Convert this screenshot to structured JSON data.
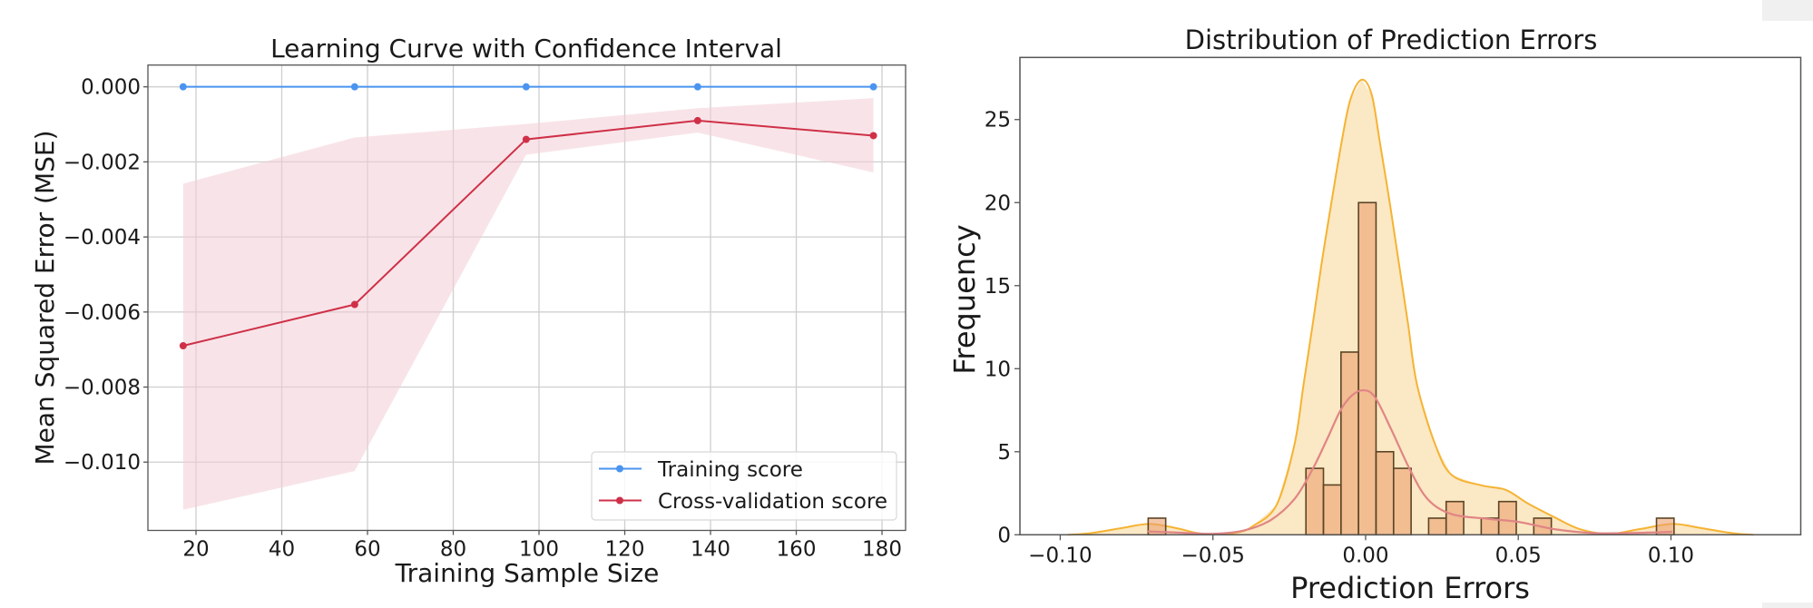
{
  "chart_data": [
    {
      "type": "line",
      "title": "Learning Curve with Confidence Interval",
      "xlabel": "Training Sample Size",
      "ylabel": "Mean Squared Error (MSE)",
      "xlim": [
        8.78,
        185.5
      ],
      "ylim": [
        -0.01182,
        0.00058
      ],
      "grid": true,
      "xticks": [
        20,
        40,
        60,
        80,
        100,
        120,
        140,
        160,
        180
      ],
      "xtick_labels": [
        "20",
        "40",
        "60",
        "80",
        "100",
        "120",
        "140",
        "160",
        "180"
      ],
      "yticks": [
        0.0,
        -0.002,
        -0.004,
        -0.006,
        -0.008,
        -0.01
      ],
      "ytick_labels": [
        "0.000",
        "−0.002",
        "−0.004",
        "−0.006",
        "−0.008",
        "−0.010"
      ],
      "x": [
        17,
        57,
        97,
        137,
        178
      ],
      "series": [
        {
          "name": "Training score",
          "values": [
            0.0,
            0.0,
            0.0,
            0.0,
            0.0
          ],
          "color": "#4a94f0"
        },
        {
          "name": "Cross-validation score",
          "values": [
            -0.0069,
            -0.0058,
            -0.0014,
            -0.0009,
            -0.0013
          ],
          "band_upper": [
            -0.00258,
            -0.00135,
            -0.00099,
            -0.00057,
            -0.0003
          ],
          "band_lower": [
            -0.01127,
            -0.01024,
            -0.00181,
            -0.00122,
            -0.00228
          ],
          "color": "#cf3048",
          "band_color": "#f3cdd5"
        }
      ],
      "legend": {
        "position": "lower-right",
        "entries": [
          "Training score",
          "Cross-validation score"
        ]
      }
    },
    {
      "type": "bar",
      "subtype": "histogram-with-kde",
      "title": "Distribution of Prediction Errors",
      "xlabel": "Prediction Errors",
      "ylabel": "Frequency",
      "xlim": [
        -0.1132,
        0.1425
      ],
      "ylim": [
        0,
        28.74
      ],
      "grid": false,
      "xticks": [
        -0.1,
        -0.05,
        0.0,
        0.05,
        0.1
      ],
      "xtick_labels": [
        "−0.10",
        "−0.05",
        "0.00",
        "0.05",
        "0.10"
      ],
      "yticks": [
        0,
        5,
        10,
        15,
        20,
        25
      ],
      "ytick_labels": [
        "0",
        "5",
        "10",
        "15",
        "20",
        "25"
      ],
      "bin_start": -0.0712,
      "bin_width": 0.00574,
      "counts": [
        1,
        0,
        0,
        0,
        0,
        0,
        0,
        0,
        0,
        4,
        3,
        11,
        20,
        5,
        4,
        0,
        1,
        2,
        0,
        1,
        2,
        0,
        1,
        0,
        0,
        0,
        0,
        0,
        0,
        1
      ],
      "bar_color": "#eba06f",
      "bar_edge_color": "#5b4526",
      "kde_fill": {
        "color": "#f5b333",
        "fill": "#fbe7c1",
        "x": [
          -0.0975,
          -0.09,
          -0.08,
          -0.0708,
          -0.062,
          -0.055,
          -0.049,
          -0.042,
          -0.0371,
          -0.0292,
          -0.0233,
          -0.0203,
          -0.0173,
          -0.0144,
          -0.0112,
          -0.0079,
          -0.005,
          -0.0013,
          0.002,
          0.0047,
          0.0079,
          0.0109,
          0.0139,
          0.0168,
          0.0228,
          0.0282,
          0.0381,
          0.046,
          0.053,
          0.0619,
          0.07,
          0.0796,
          0.09,
          0.1005,
          0.11,
          0.12,
          0.127
        ],
        "y": [
          0,
          0.1,
          0.4,
          0.65,
          0.4,
          0.1,
          0.03,
          0.14,
          0.5,
          1.78,
          5.43,
          9.07,
          12.7,
          16.35,
          20.0,
          23.6,
          26.2,
          27.4,
          26.5,
          23.6,
          20.0,
          16.35,
          12.7,
          9.07,
          5.43,
          3.6,
          2.97,
          2.7,
          1.9,
          1.05,
          0.35,
          0.05,
          0.35,
          0.65,
          0.4,
          0.1,
          0
        ]
      },
      "kde_line": {
        "color": "#e08585",
        "x": [
          -0.0713,
          -0.06,
          -0.05,
          -0.04,
          -0.0312,
          -0.0233,
          -0.0173,
          -0.0125,
          -0.0084,
          -0.005,
          -0.001,
          0.003,
          0.0084,
          0.0144,
          0.0203,
          0.0282,
          0.04,
          0.05,
          0.062,
          0.075,
          0.09,
          0.1005
        ],
        "y": [
          0.2,
          0.12,
          0.06,
          0.25,
          0.87,
          2.15,
          3.97,
          5.8,
          7.43,
          8.3,
          8.7,
          8.3,
          6.34,
          3.97,
          2.15,
          1.24,
          0.96,
          0.78,
          0.33,
          0.1,
          0.12,
          0.18
        ]
      }
    }
  ]
}
